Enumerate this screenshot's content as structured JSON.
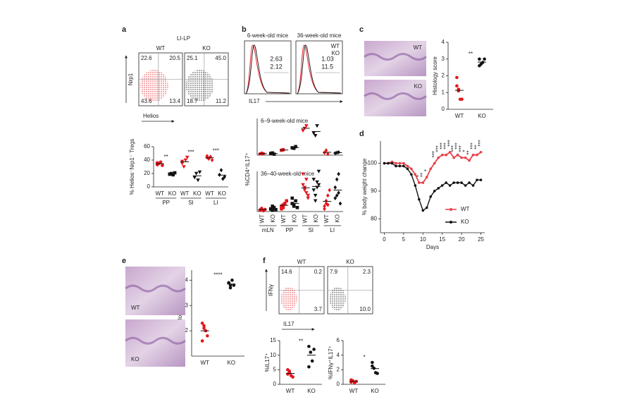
{
  "panel_labels": [
    "a",
    "b",
    "c",
    "d",
    "e",
    "f"
  ],
  "chart_data": [
    {
      "type": "flow",
      "title": "LI-LP",
      "xlabel": "Helios",
      "ylabel": "Nrp1",
      "samples": [
        {
          "name": "WT",
          "color": "#e8141b",
          "values": [
            22.6,
            20.5,
            43.6,
            13.4
          ],
          "value_labels": [
            "22.6",
            "20.5",
            "43.6",
            "13.4"
          ]
        },
        {
          "name": "KO",
          "color": "#111111",
          "values": [
            25.1,
            45.0,
            18.7,
            11.2
          ],
          "value_labels": [
            "25.1",
            "45.0",
            "18.7",
            "11.2"
          ]
        }
      ]
    },
    {
      "type": "dot",
      "ylabel": "% Helios⁻Nrp1⁻ Tregs",
      "ylim": [
        0,
        60
      ],
      "yticks": [
        0,
        20,
        40,
        60
      ],
      "groups": [
        {
          "name": "PP",
          "significance": "**",
          "series": [
            {
              "name": "WT",
              "color": "#e8141b",
              "marker": "circle",
              "values": [
                33,
                35,
                37,
                32,
                36
              ]
            },
            {
              "name": "KO",
              "color": "#111111",
              "marker": "square",
              "values": [
                19,
                20,
                18,
                21,
                19
              ]
            }
          ]
        },
        {
          "name": "SI",
          "significance": "***",
          "series": [
            {
              "name": "WT",
              "color": "#e8141b",
              "marker": "triangle",
              "values": [
                35,
                30,
                40,
                44,
                38
              ]
            },
            {
              "name": "KO",
              "color": "#111111",
              "marker": "triangle",
              "values": [
                14,
                20,
                10,
                22
              ]
            }
          ]
        },
        {
          "name": "LI",
          "significance": "***",
          "series": [
            {
              "name": "WT",
              "color": "#e8141b",
              "marker": "diamond",
              "values": [
                44,
                42,
                45,
                40,
                46
              ]
            },
            {
              "name": "KO",
              "color": "#111111",
              "marker": "diamond",
              "values": [
                18,
                25,
                12,
                15
              ]
            }
          ]
        }
      ]
    },
    {
      "type": "histogram-overlay",
      "xlabel": "IL17",
      "series": [
        {
          "name": "WT",
          "color": "#e8141b"
        },
        {
          "name": "KO",
          "color": "#111111"
        }
      ],
      "panels": [
        {
          "title": "6-week-old mice",
          "values": [
            2.63,
            2.12
          ]
        },
        {
          "title": "36-week-old mice",
          "values": [
            1.03,
            11.5
          ]
        }
      ]
    },
    {
      "type": "dot",
      "title": "6–9-week-old mice",
      "ylabel": "%CD4⁺IL17⁺",
      "ylim": [
        0,
        15
      ],
      "groups": [
        {
          "series": [
            {
              "color": "#e8141b",
              "marker": "circle",
              "values": [
                0.5,
                0.8,
                0.6
              ]
            },
            {
              "color": "#111111",
              "marker": "square",
              "values": [
                0.7,
                0.9,
                0.4
              ]
            }
          ]
        },
        {
          "series": [
            {
              "color": "#e8141b",
              "marker": "square",
              "values": [
                2,
                2.2
              ]
            },
            {
              "color": "#111111",
              "marker": "square",
              "values": [
                3,
                2.8,
                3.5
              ]
            }
          ]
        },
        {
          "series": [
            {
              "color": "#e8141b",
              "marker": "triangle",
              "values": [
                10,
                11,
                12
              ]
            },
            {
              "color": "#111111",
              "marker": "triangle",
              "values": [
                9,
                8,
                12
              ]
            }
          ]
        },
        {
          "series": [
            {
              "color": "#e8141b",
              "marker": "diamond",
              "values": [
                1,
                2,
                0.5
              ]
            },
            {
              "color": "#111111",
              "marker": "diamond",
              "values": [
                0.8,
                1.0,
                1.2
              ]
            }
          ]
        }
      ]
    },
    {
      "type": "dot",
      "title": "36–40-week-old mice",
      "ylim": [
        0,
        15
      ],
      "groups": [
        {
          "name": "mLN",
          "series": [
            {
              "name": "WT",
              "color": "#e8141b",
              "marker": "circle",
              "values": [
                0.5,
                1,
                0.3,
                0.8,
                0.6,
                1.2
              ]
            },
            {
              "name": "KO",
              "color": "#111111",
              "marker": "square",
              "values": [
                1,
                0.5,
                1.5,
                0.7,
                0.9,
                2
              ]
            }
          ]
        },
        {
          "name": "PP",
          "series": [
            {
              "name": "WT",
              "color": "#e8141b",
              "marker": "square",
              "values": [
                2,
                1.5,
                3,
                4,
                1,
                2.5
              ]
            },
            {
              "name": "KO",
              "color": "#111111",
              "marker": "square",
              "values": [
                3,
                2,
                4,
                1.5,
                5,
                2.5
              ]
            }
          ]
        },
        {
          "name": "SI",
          "series": [
            {
              "name": "WT",
              "color": "#e8141b",
              "marker": "triangle",
              "values": [
                10,
                8,
                12,
                6,
                14,
                9,
                7,
                5
              ]
            },
            {
              "name": "KO",
              "color": "#111111",
              "marker": "triangle",
              "values": [
                12,
                6,
                9,
                15,
                8,
                4,
                11,
                10
              ]
            }
          ]
        },
        {
          "name": "LI",
          "series": [
            {
              "name": "WT",
              "color": "#e8141b",
              "marker": "diamond",
              "values": [
                2,
                3,
                6,
                8,
                1,
                4,
                2.5
              ]
            },
            {
              "name": "KO",
              "color": "#111111",
              "marker": "diamond",
              "values": [
                9,
                6,
                14,
                3,
                5,
                12,
                7
              ]
            }
          ]
        }
      ]
    },
    {
      "type": "dot",
      "ylabel": "Histology score",
      "ylim": [
        0,
        4
      ],
      "yticks": [
        0,
        1,
        2,
        3,
        4
      ],
      "image_labels": [
        "WT",
        "KO"
      ],
      "groups": [
        {
          "significance": "**",
          "series": [
            {
              "name": "WT",
              "color": "#e8141b",
              "marker": "circle",
              "values": [
                1.9,
                1.2,
                0.6,
                0.6,
                1.4,
                1.1
              ]
            },
            {
              "name": "KO",
              "color": "#111111",
              "marker": "circle",
              "values": [
                3.0,
                2.7,
                2.8,
                3.0,
                2.6
              ]
            }
          ]
        }
      ]
    },
    {
      "type": "line",
      "xlabel": "Days",
      "ylabel": "% body weight change",
      "xlim": [
        -1,
        26
      ],
      "xticks": [
        0,
        5,
        10,
        15,
        20,
        25
      ],
      "ylim": [
        75,
        108
      ],
      "yticks": [
        80,
        90,
        100
      ],
      "x": [
        0,
        1,
        2,
        3,
        4,
        5,
        6,
        7,
        8,
        9,
        10,
        11,
        12,
        13,
        14,
        15,
        16,
        17,
        18,
        19,
        20,
        21,
        22,
        23,
        24,
        25
      ],
      "series": [
        {
          "name": "WT",
          "color": "#e8414a",
          "values": [
            100,
            100,
            100.5,
            100,
            100,
            100,
            99,
            98,
            96,
            93,
            93,
            95,
            98,
            100,
            102,
            103,
            103,
            104,
            102,
            103,
            102,
            102,
            101,
            103,
            103,
            104
          ]
        },
        {
          "name": "KO",
          "color": "#111111",
          "values": [
            100,
            100,
            100,
            99,
            99,
            99,
            98,
            96,
            92,
            87,
            83,
            84,
            88,
            90,
            91,
            92,
            93,
            92,
            93,
            93,
            93,
            92,
            93,
            92,
            94,
            94
          ]
        }
      ],
      "annotations": [
        {
          "x": 9,
          "label": "*"
        },
        {
          "x": 10,
          "label": "**"
        },
        {
          "x": 11,
          "label": "*"
        },
        {
          "x": 13,
          "label": "***"
        },
        {
          "x": 14,
          "label": "***"
        },
        {
          "x": 15,
          "label": "***"
        },
        {
          "x": 16,
          "label": "***"
        },
        {
          "x": 17,
          "label": "***"
        },
        {
          "x": 18,
          "label": "***"
        },
        {
          "x": 19,
          "label": "***"
        },
        {
          "x": 20,
          "label": "***"
        },
        {
          "x": 21,
          "label": "*"
        },
        {
          "x": 22,
          "label": "**"
        },
        {
          "x": 23,
          "label": "***"
        },
        {
          "x": 24,
          "label": "**"
        },
        {
          "x": 25,
          "label": "***"
        }
      ]
    },
    {
      "type": "dot",
      "ylabel": "Histology score",
      "ylim": [
        1,
        4.4
      ],
      "yticks": [
        2,
        3,
        4
      ],
      "image_labels": [
        "WT",
        "KO"
      ],
      "groups": [
        {
          "significance": "****",
          "series": [
            {
              "name": "WT",
              "color": "#e8141b",
              "marker": "circle",
              "values": [
                2.3,
                2.1,
                2.0,
                1.8,
                1.6,
                2.2
              ]
            },
            {
              "name": "KO",
              "color": "#111111",
              "marker": "circle",
              "values": [
                3.9,
                3.8,
                4.0,
                3.8,
                3.9,
                3.7
              ]
            }
          ]
        }
      ]
    },
    {
      "type": "flow",
      "xlabel": "IL17",
      "ylabel": "IFNγ",
      "samples": [
        {
          "name": "WT",
          "color": "#e8141b",
          "values": [
            14.6,
            0.2,
            null,
            3.7
          ],
          "value_labels": [
            "14.6",
            "0.2",
            null,
            "3.7"
          ]
        },
        {
          "name": "KO",
          "color": "#111111",
          "values": [
            7.9,
            2.3,
            null,
            10.0
          ],
          "value_labels": [
            "7.9",
            "2.3",
            null,
            "10.0"
          ]
        }
      ]
    },
    {
      "type": "dot",
      "ylabel": "%IL17⁺",
      "ylim": [
        0,
        15
      ],
      "yticks": [
        0,
        5,
        10,
        15
      ],
      "groups": [
        {
          "significance": "**",
          "series": [
            {
              "name": "WT",
              "color": "#e8141b",
              "marker": "circle",
              "values": [
                3.5,
                4,
                3,
                2.5,
                5,
                4.5
              ]
            },
            {
              "name": "KO",
              "color": "#111111",
              "marker": "circle",
              "values": [
                13,
                11,
                8,
                12,
                6
              ]
            }
          ]
        }
      ]
    },
    {
      "type": "dot",
      "ylabel": "%IFNγ⁺IL17⁺",
      "ylim": [
        0,
        6
      ],
      "yticks": [
        0,
        2,
        4,
        6
      ],
      "groups": [
        {
          "significance": "*",
          "series": [
            {
              "name": "WT",
              "color": "#e8141b",
              "marker": "circle",
              "values": [
                0.3,
                0.5,
                0.2,
                0.4,
                0.6
              ]
            },
            {
              "name": "KO",
              "color": "#111111",
              "marker": "circle",
              "values": [
                3,
                2.2,
                1.6,
                1.5,
                2.5
              ]
            }
          ]
        }
      ]
    }
  ]
}
